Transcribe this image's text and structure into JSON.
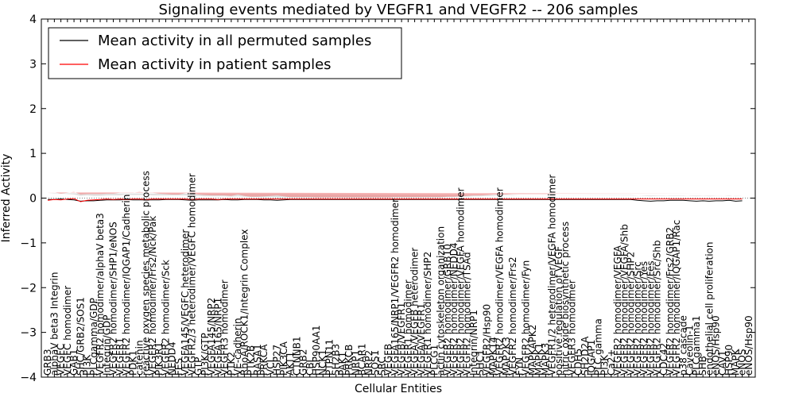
{
  "chart_data": {
    "type": "line",
    "title": "Signaling events mediated by VEGFR1 and VEGFR2 -- 206 samples",
    "xlabel": "Cellular Entities",
    "ylabel": "Inferred Activity",
    "ylim": [
      -4,
      4
    ],
    "yticks": [
      -4,
      -3,
      -2,
      -1,
      0,
      1,
      2,
      3,
      4
    ],
    "legend": {
      "position": "top-left",
      "entries": [
        {
          "name": "Mean activity in all permuted samples",
          "color": "#000000"
        },
        {
          "name": "Mean activity in patient samples",
          "color": "#ff0000"
        }
      ]
    },
    "colors": {
      "patient_line": "#ff0000",
      "patient_band": "#f08080",
      "permuted_line": "#000000",
      "permuted_band": "#c8c8c8"
    },
    "categories": [
      "GRB3",
      "alphaV beta3 Integrin",
      "VEGFC",
      "VEGFC homodimer",
      "GAB1",
      "SHC/GRB2/SOS1",
      "PI3K",
      "PLCgamma/GDP",
      "VEGFR2 homodimer/alphaV beta3",
      "Integrin/GDP",
      "VEGFR2 homodimer/SHP1/eNOS",
      "VEGFR1",
      "VEGFR2 homodimer/IQGAP1/Cadherin",
      "PDK1",
      "catenin",
      "reactive oxygen species metabolic process",
      "VEGFR2 homodimer/Frs2/Nck/Pak",
      "PIK3R1",
      "VEGFR2 homodimer/Sck",
      "NEDD4",
      "FES",
      "VEGFA145/VEGFC heterodimer",
      "VEGFR2/3 heterodimer/VEGFC homodimer",
      "GTP",
      "PI3K/GTP",
      "VEGFA145/NRP2",
      "VEGFA165/NRP1",
      "VEGFR3 homodimer",
      "PTK2",
      "VE-cadherin",
      "RhoA/ROCK1/Integrin Complex",
      "PTK2B",
      "RASA1",
      "PRKCA",
      "VCL",
      "HSP27",
      "PIK3CA",
      "AKT1",
      "CTNNB1",
      "GRB2",
      "CBL",
      "HSP90AA1",
      "NCK1",
      "PTPN11",
      "SH2B3",
      "PAK1",
      "PRKCB",
      "NRP1",
      "BCAR1",
      "NRP2",
      "SOS1",
      "SRC",
      "VEGFB",
      "VEGFA165/NRP1/VEGFR2 homodimer",
      "VEGFB/VEGFR1",
      "VEGFR1 homodimer",
      "VEGFA/VEGFB heterodimer",
      "VEGFA/VEGFR1",
      "VEGFR1 homodimer/SHP2",
      "PLCG1",
      "actin cytoskeleton organization",
      "VEGFR2 homodimer/GRB10",
      "VEGFR2 homodimer/NEDD4",
      "VEGFR2 homodimer/VEGFA homodimer",
      "VEGFR2 homodimer/TSAd",
      "Integrin/NRP1",
      "SHC1",
      "VEGFR2/Hsp90",
      "MAPK14",
      "VEGFR2 homodimer/VEGFA homodimer",
      "MAP2K3",
      "VEGFR2 homodimer/Frs2",
      "FYN",
      "VEGFR2 homodimer/Fyn",
      "MAPKAPK2",
      "MAPK1",
      "MAPK3",
      "VEGFR1/2 heterodimer/VEGFA homodimer",
      "positive regulation of VEGF",
      "nitric oxide biosynthetic process",
      "VEGFR3 homodimer",
      "CDH5",
      "SH2D2A",
      "IQGAP1",
      "PLC gamma",
      "PI3K",
      "Ca2+",
      "VEGFR2 homodimer/VEGFA",
      "VEGFR2 homodimer/VEGFA/Shb",
      "VEGFR2 homodimer/SHP2",
      "VEGFR2 homodimer/Src",
      "VEGFR2 homodimer/Yes",
      "VEGFR2 homodimer/Fes",
      "VEGFR2 homodimer/Src/Shb",
      "CDC42",
      "VEGFR2 homodimer/Frs2/GRB2",
      "VEGFR2 homodimer/IQGAP1/Rac",
      "p38 cascade",
      "Caveolin-1",
      "PLCgamma1",
      "SHB",
      "endothelial cell proliferation",
      "eNOS/Hsp90",
      "CAV1",
      "HSP90",
      "MAPK",
      "eNOS",
      "eNOS/Hsp90"
    ],
    "patient_mean": [
      -0.05,
      -0.03,
      -0.04,
      -0.02,
      -0.01,
      -0.08,
      -0.05,
      -0.04,
      -0.03,
      -0.02,
      -0.03,
      -0.02,
      -0.03,
      -0.02,
      -0.02,
      -0.03,
      -0.02,
      -0.02,
      -0.02,
      -0.02,
      -0.02,
      -0.02,
      -0.03,
      -0.02,
      -0.02,
      -0.02,
      -0.03,
      -0.02,
      -0.02,
      -0.02,
      -0.02,
      -0.02,
      -0.02,
      -0.02,
      -0.02,
      -0.02,
      -0.02,
      -0.02,
      -0.02,
      -0.02,
      -0.02,
      -0.02,
      -0.02,
      -0.02,
      -0.02,
      -0.02,
      -0.02,
      -0.02,
      -0.02,
      -0.02,
      -0.02,
      -0.02,
      -0.02,
      -0.02,
      -0.02,
      -0.02,
      -0.02,
      -0.02,
      -0.02,
      -0.02,
      -0.02,
      -0.02,
      -0.02,
      -0.02,
      -0.02,
      -0.02,
      -0.02,
      -0.02,
      -0.02,
      -0.02,
      -0.02,
      -0.02,
      -0.02,
      -0.02,
      -0.02,
      -0.02,
      -0.02,
      -0.02,
      -0.02,
      -0.02,
      -0.02,
      -0.02,
      -0.02,
      -0.02,
      -0.02,
      -0.02,
      -0.02,
      -0.02,
      -0.02,
      -0.02,
      -0.02,
      -0.02,
      -0.02,
      -0.02,
      -0.02,
      -0.02,
      -0.02,
      -0.02,
      -0.02,
      -0.02,
      -0.02,
      -0.02,
      -0.02,
      -0.02,
      -0.02,
      -0.02,
      -0.02
    ],
    "permuted_mean": [
      -0.03,
      -0.03,
      -0.02,
      -0.03,
      -0.04,
      -0.07,
      -0.06,
      -0.06,
      -0.05,
      -0.04,
      -0.04,
      -0.04,
      -0.03,
      -0.04,
      -0.04,
      -0.04,
      -0.04,
      -0.04,
      -0.03,
      -0.03,
      -0.03,
      -0.04,
      -0.05,
      -0.04,
      -0.04,
      -0.04,
      -0.04,
      -0.03,
      -0.04,
      -0.04,
      -0.03,
      -0.03,
      -0.03,
      -0.04,
      -0.04,
      -0.05,
      -0.04,
      -0.03,
      -0.03,
      -0.03,
      -0.03,
      -0.03,
      -0.03,
      -0.03,
      -0.03,
      -0.03,
      -0.03,
      -0.03,
      -0.03,
      -0.03,
      -0.03,
      -0.03,
      -0.03,
      -0.03,
      -0.03,
      -0.03,
      -0.03,
      -0.03,
      -0.03,
      -0.03,
      -0.03,
      -0.03,
      -0.03,
      -0.03,
      -0.03,
      -0.03,
      -0.03,
      -0.03,
      -0.03,
      -0.03,
      -0.03,
      -0.03,
      -0.03,
      -0.03,
      -0.03,
      -0.03,
      -0.03,
      -0.03,
      -0.03,
      -0.03,
      -0.03,
      -0.03,
      -0.03,
      -0.03,
      -0.03,
      -0.03,
      -0.03,
      -0.03,
      -0.03,
      -0.03,
      -0.05,
      -0.06,
      -0.07,
      -0.06,
      -0.06,
      -0.05,
      -0.05,
      -0.05,
      -0.06,
      -0.07,
      -0.06,
      -0.07,
      -0.06,
      -0.06,
      -0.05,
      -0.07,
      -0.06
    ],
    "patient_band_halfwidth": [
      0.18,
      0.16,
      0.14,
      0.14,
      0.15,
      0.16,
      0.14,
      0.13,
      0.12,
      0.12,
      0.13,
      0.14,
      0.15,
      0.14,
      0.16,
      0.15,
      0.14,
      0.12,
      0.11,
      0.1,
      0.1,
      0.13,
      0.14,
      0.1,
      0.09,
      0.08,
      0.09,
      0.08,
      0.07,
      0.1,
      0.07,
      0.05,
      0.05,
      0.06,
      0.07,
      0.08,
      0.06,
      0.04,
      0.04,
      0.04,
      0.04,
      0.03,
      0.03,
      0.03,
      0.03,
      0.03,
      0.03,
      0.03,
      0.03,
      0.03,
      0.03,
      0.03,
      0.03,
      0.04,
      0.04,
      0.04,
      0.04,
      0.04,
      0.04,
      0.04,
      0.04,
      0.05,
      0.05,
      0.06,
      0.07,
      0.08,
      0.08,
      0.09,
      0.1,
      0.1,
      0.1,
      0.11,
      0.11,
      0.11,
      0.11,
      0.11,
      0.11,
      0.12,
      0.12,
      0.12,
      0.12,
      0.12,
      0.12,
      0.12,
      0.12,
      0.12,
      0.12,
      0.12,
      0.12,
      0.12,
      0.12,
      0.12,
      0.12,
      0.12,
      0.12,
      0.12,
      0.12,
      0.12,
      0.12,
      0.12,
      0.12,
      0.12,
      0.12,
      0.12,
      0.12,
      0.12,
      0.12
    ],
    "permuted_band_halfwidth": [
      0.14,
      0.13,
      0.12,
      0.12,
      0.12,
      0.12,
      0.12,
      0.11,
      0.1,
      0.1,
      0.1,
      0.1,
      0.11,
      0.11,
      0.11,
      0.11,
      0.1,
      0.1,
      0.09,
      0.09,
      0.09,
      0.1,
      0.1,
      0.09,
      0.08,
      0.08,
      0.08,
      0.07,
      0.07,
      0.08,
      0.06,
      0.05,
      0.05,
      0.05,
      0.06,
      0.06,
      0.05,
      0.04,
      0.04,
      0.04,
      0.04,
      0.04,
      0.04,
      0.04,
      0.04,
      0.04,
      0.04,
      0.04,
      0.04,
      0.04,
      0.04,
      0.04,
      0.04,
      0.04,
      0.04,
      0.04,
      0.04,
      0.04,
      0.04,
      0.04,
      0.04,
      0.05,
      0.05,
      0.06,
      0.06,
      0.07,
      0.07,
      0.08,
      0.08,
      0.09,
      0.09,
      0.09,
      0.1,
      0.1,
      0.1,
      0.1,
      0.1,
      0.1,
      0.1,
      0.1,
      0.1,
      0.1,
      0.1,
      0.1,
      0.1,
      0.1,
      0.1,
      0.1,
      0.1,
      0.1,
      0.11,
      0.11,
      0.11,
      0.11,
      0.11,
      0.11,
      0.11,
      0.11,
      0.11,
      0.11,
      0.11,
      0.11,
      0.11,
      0.11,
      0.11,
      0.11,
      0.11
    ]
  }
}
